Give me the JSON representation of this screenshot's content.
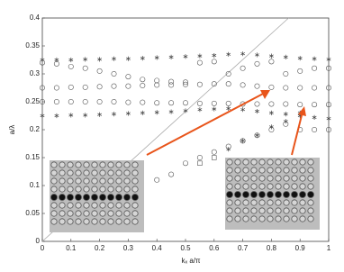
{
  "chart_data": {
    "type": "scatter",
    "xlabel": "kₓ a/π",
    "ylabel": "a/λ",
    "xlim": [
      0,
      1
    ],
    "ylim": [
      0,
      0.4
    ],
    "xticks": [
      0,
      0.1,
      0.2,
      0.3,
      0.4,
      0.5,
      0.6,
      0.7,
      0.8,
      0.9,
      1
    ],
    "yticks": [
      0,
      0.05,
      0.1,
      0.15,
      0.2,
      0.25,
      0.3,
      0.35,
      0.4
    ],
    "series": [
      {
        "marker": "line",
        "color": "#aaaaaa",
        "x": [
          0,
          0.86
        ],
        "values": [
          0,
          0.4
        ]
      },
      {
        "marker": "star",
        "color": "#444444",
        "x": [
          0,
          0.05,
          0.1,
          0.15,
          0.2,
          0.25,
          0.3,
          0.35,
          0.4,
          0.45,
          0.5,
          0.55,
          0.6,
          0.65,
          0.7,
          0.75,
          0.8,
          0.85,
          0.9,
          0.95,
          1
        ],
        "values": [
          0.325,
          0.325,
          0.325,
          0.326,
          0.326,
          0.327,
          0.327,
          0.328,
          0.329,
          0.33,
          0.331,
          0.332,
          0.333,
          0.335,
          0.336,
          0.334,
          0.332,
          0.33,
          0.328,
          0.327,
          0.326
        ]
      },
      {
        "marker": "circle",
        "color": "#555555",
        "x": [
          0,
          0.05,
          0.1,
          0.15,
          0.2,
          0.25,
          0.3,
          0.35,
          0.4,
          0.45,
          0.5,
          0.55,
          0.6,
          0.65,
          0.7,
          0.75,
          0.8,
          0.85,
          0.9,
          0.95,
          1
        ],
        "values": [
          0.32,
          0.318,
          0.313,
          0.31,
          0.305,
          0.3,
          0.295,
          0.29,
          0.288,
          0.286,
          0.285,
          0.32,
          0.322,
          0.3,
          0.31,
          0.318,
          0.322,
          0.3,
          0.305,
          0.31,
          0.31
        ]
      },
      {
        "marker": "circle",
        "color": "#555555",
        "x": [
          0,
          0.05,
          0.1,
          0.15,
          0.2,
          0.25,
          0.3,
          0.35,
          0.4,
          0.45,
          0.5,
          0.55,
          0.6,
          0.65,
          0.7,
          0.75,
          0.8,
          0.85,
          0.9,
          0.95,
          1
        ],
        "values": [
          0.275,
          0.275,
          0.276,
          0.276,
          0.277,
          0.278,
          0.278,
          0.279,
          0.28,
          0.28,
          0.281,
          0.281,
          0.282,
          0.282,
          0.28,
          0.278,
          0.276,
          0.275,
          0.275,
          0.275,
          0.275
        ]
      },
      {
        "marker": "circle",
        "color": "#555555",
        "x": [
          0,
          0.05,
          0.1,
          0.15,
          0.2,
          0.25,
          0.3,
          0.35,
          0.4,
          0.45,
          0.5,
          0.55,
          0.6,
          0.65,
          0.7,
          0.75,
          0.8,
          0.85,
          0.9,
          0.95,
          1
        ],
        "values": [
          0.25,
          0.25,
          0.25,
          0.25,
          0.25,
          0.25,
          0.249,
          0.249,
          0.248,
          0.248,
          0.248,
          0.247,
          0.247,
          0.247,
          0.246,
          0.246,
          0.246,
          0.246,
          0.245,
          0.245,
          0.245
        ]
      },
      {
        "marker": "star",
        "color": "#444444",
        "x": [
          0,
          0.05,
          0.1,
          0.15,
          0.2,
          0.25,
          0.3,
          0.35,
          0.4,
          0.45,
          0.5,
          0.55,
          0.6,
          0.65,
          0.7,
          0.75,
          0.8,
          0.85,
          0.9,
          0.95,
          1
        ],
        "values": [
          0.225,
          0.225,
          0.226,
          0.226,
          0.227,
          0.228,
          0.229,
          0.23,
          0.231,
          0.232,
          0.234,
          0.236,
          0.237,
          0.238,
          0.236,
          0.233,
          0.23,
          0.228,
          0.225,
          0.222,
          0.22
        ]
      },
      {
        "marker": "circle",
        "color": "#555555",
        "x": [
          0.4,
          0.45,
          0.5,
          0.55,
          0.6,
          0.65,
          0.7,
          0.75,
          0.8,
          0.85,
          0.9,
          0.95,
          1
        ],
        "values": [
          0.11,
          0.12,
          0.14,
          0.15,
          0.16,
          0.17,
          0.18,
          0.19,
          0.2,
          0.21,
          0.2,
          0.2,
          0.2
        ]
      },
      {
        "marker": "square",
        "color": "#555555",
        "x": [
          0.55,
          0.6
        ],
        "values": [
          0.14,
          0.15
        ]
      },
      {
        "marker": "star",
        "color": "#444444",
        "x": [
          0.65,
          0.7,
          0.75,
          0.8,
          0.85,
          0.9
        ],
        "values": [
          0.165,
          0.18,
          0.19,
          0.205,
          0.215,
          0.23
        ]
      }
    ]
  }
}
